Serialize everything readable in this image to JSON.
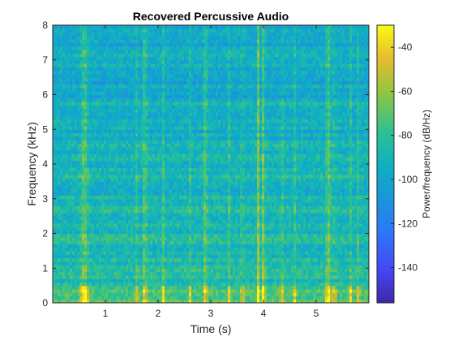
{
  "chart_data": {
    "type": "heatmap",
    "title": "Recovered Percussive Audio",
    "xlabel": "Time (s)",
    "ylabel": "Frequency (kHz)",
    "colorbar_label": "Power/frequency (dB/Hz)",
    "xlim": [
      0,
      6
    ],
    "ylim": [
      0,
      8
    ],
    "clim": [
      -156,
      -30
    ],
    "x_ticks": [
      1,
      2,
      3,
      4,
      5
    ],
    "x_tick_labels": [
      "1",
      "2",
      "3",
      "4",
      "5"
    ],
    "y_ticks": [
      0,
      1,
      2,
      3,
      4,
      5,
      6,
      7,
      8
    ],
    "y_tick_labels": [
      "0",
      "1",
      "2",
      "3",
      "4",
      "5",
      "6",
      "7",
      "8"
    ],
    "colorbar_ticks": [
      -140,
      -120,
      -100,
      -80,
      -60,
      -40
    ],
    "colorbar_tick_labels": [
      "-140",
      "-120",
      "-100",
      "-80",
      "-60",
      "-40"
    ],
    "colormap": "parula",
    "grid": false,
    "transient_times_s": [
      0.55,
      0.6,
      0.65,
      1.6,
      1.75,
      2.1,
      2.6,
      2.9,
      3.35,
      3.6,
      3.9,
      4.0,
      4.35,
      4.6,
      5.2,
      5.25,
      5.35,
      5.65,
      5.8
    ],
    "percussive_strong_times_s": [
      0.6,
      1.75,
      2.9,
      3.9,
      4.0,
      5.25
    ]
  }
}
